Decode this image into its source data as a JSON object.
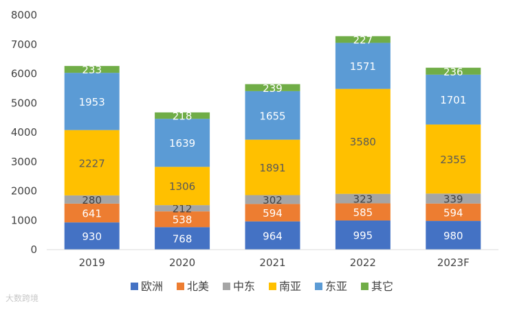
{
  "chart_data": {
    "type": "bar",
    "stacked": true,
    "categories": [
      "2019",
      "2020",
      "2021",
      "2022",
      "2023F"
    ],
    "ylim": [
      0,
      8000
    ],
    "yticks": [
      0,
      1000,
      2000,
      3000,
      4000,
      5000,
      6000,
      7000,
      8000
    ],
    "grid": false,
    "legend_position": "bottom",
    "series": [
      {
        "name": "欧洲",
        "color": "#4472c4",
        "label_color": "#ffffff",
        "values": [
          930,
          768,
          964,
          995,
          980
        ]
      },
      {
        "name": "北美",
        "color": "#ed7d31",
        "label_color": "#ffffff",
        "values": [
          641,
          538,
          594,
          585,
          594
        ]
      },
      {
        "name": "中东",
        "color": "#a5a5a5",
        "label_color": "#404040",
        "values": [
          280,
          212,
          302,
          323,
          339
        ]
      },
      {
        "name": "南亚",
        "color": "#ffc000",
        "label_color": "#595959",
        "values": [
          2227,
          1306,
          1891,
          3580,
          2355
        ]
      },
      {
        "name": "东亚",
        "color": "#5b9bd5",
        "label_color": "#ffffff",
        "values": [
          1953,
          1639,
          1655,
          1571,
          1701
        ]
      },
      {
        "name": "其它",
        "color": "#70ad47",
        "label_color": "#ffffff",
        "values": [
          233,
          218,
          239,
          227,
          236
        ]
      }
    ]
  },
  "watermark": "大数跨境"
}
